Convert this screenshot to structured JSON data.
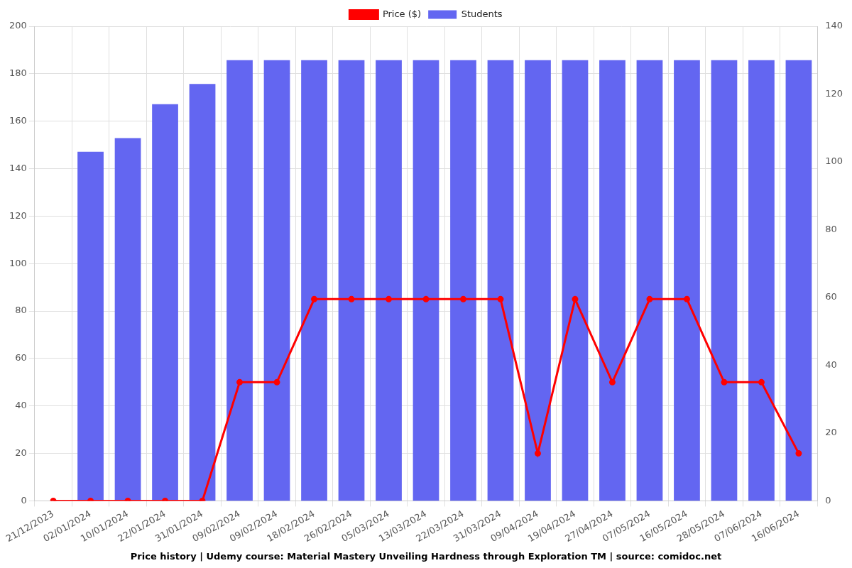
{
  "chart_data": {
    "type": "bar",
    "title": "Price history | Udemy course: Material Mastery Unveiling Hardness through Exploration TM | source: comidoc.net",
    "categories": [
      "21/12/2023",
      "02/01/2024",
      "10/01/2024",
      "22/01/2024",
      "31/01/2024",
      "09/02/2024",
      "09/02/2024",
      "18/02/2024",
      "26/02/2024",
      "05/03/2024",
      "13/03/2024",
      "22/03/2024",
      "31/03/2024",
      "09/04/2024",
      "19/04/2024",
      "27/04/2024",
      "07/05/2024",
      "16/05/2024",
      "28/05/2024",
      "07/06/2024",
      "16/06/2024"
    ],
    "series": [
      {
        "name": "Price ($)",
        "type": "line",
        "color": "#ff0000",
        "marker": "circle",
        "values": [
          0,
          0,
          0,
          0,
          0,
          50,
          50,
          85,
          85,
          85,
          85,
          85,
          85,
          20,
          85,
          50,
          85,
          85,
          50,
          50,
          20
        ]
      },
      {
        "name": "Students",
        "type": "bar",
        "color": "#6366f1",
        "axis": "y2",
        "values": [
          null,
          103,
          107,
          117,
          123,
          130,
          130,
          130,
          130,
          130,
          130,
          130,
          130,
          130,
          130,
          130,
          130,
          130,
          130,
          130,
          130
        ]
      }
    ],
    "ylim": [
      0,
      200
    ],
    "yticks": [
      0,
      20,
      40,
      60,
      80,
      100,
      120,
      140,
      160,
      180,
      200
    ],
    "y2lim": [
      0,
      140
    ],
    "y2ticks": [
      0,
      20,
      40,
      60,
      80,
      100,
      120,
      140
    ],
    "grid": true,
    "legend": "top"
  }
}
